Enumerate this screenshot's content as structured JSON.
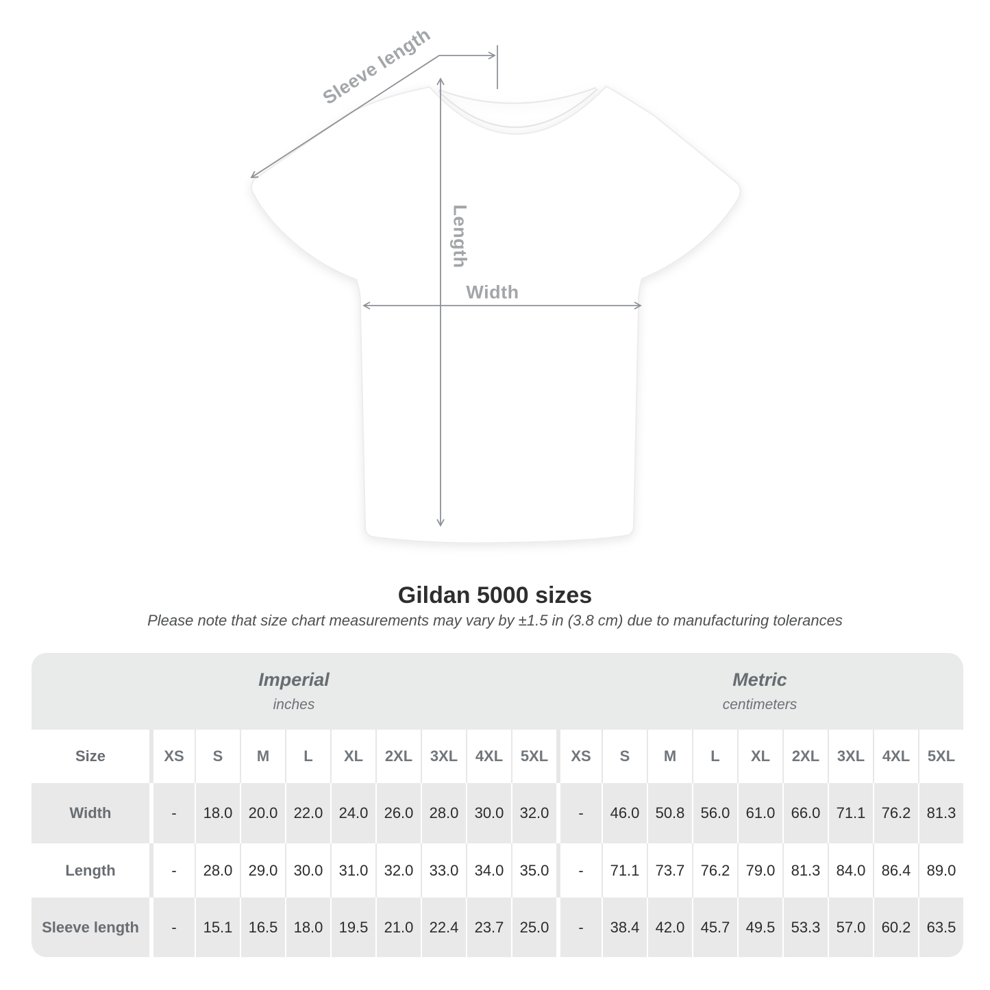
{
  "diagram": {
    "sleeve_label": "Sleeve length",
    "length_label": "Length",
    "width_label": "Width"
  },
  "header": {
    "title": "Gildan 5000 sizes",
    "subtitle": "Please note that size chart measurements may vary by ±1.5 in (3.8 cm) due to manufacturing tolerances"
  },
  "size_table": {
    "corner_header": "Size",
    "groups": [
      {
        "name": "Imperial",
        "unit": "inches"
      },
      {
        "name": "Metric",
        "unit": "centimeters"
      }
    ],
    "sizes": [
      "XS",
      "S",
      "M",
      "L",
      "XL",
      "2XL",
      "3XL",
      "4XL",
      "5XL"
    ],
    "rows": [
      {
        "label": "Width",
        "imperial": [
          "-",
          "18.0",
          "20.0",
          "22.0",
          "24.0",
          "26.0",
          "28.0",
          "30.0",
          "32.0"
        ],
        "metric": [
          "-",
          "46.0",
          "50.8",
          "56.0",
          "61.0",
          "66.0",
          "71.1",
          "76.2",
          "81.3"
        ]
      },
      {
        "label": "Length",
        "imperial": [
          "-",
          "28.0",
          "29.0",
          "30.0",
          "31.0",
          "32.0",
          "33.0",
          "34.0",
          "35.0"
        ],
        "metric": [
          "-",
          "71.1",
          "73.7",
          "76.2",
          "79.0",
          "81.3",
          "84.0",
          "86.4",
          "89.0"
        ]
      },
      {
        "label": "Sleeve length",
        "imperial": [
          "-",
          "15.1",
          "16.5",
          "18.0",
          "19.5",
          "21.0",
          "22.4",
          "23.7",
          "25.0"
        ],
        "metric": [
          "-",
          "38.4",
          "42.0",
          "45.7",
          "49.5",
          "53.3",
          "57.0",
          "60.2",
          "63.5"
        ]
      }
    ]
  },
  "chart_data": {
    "type": "table",
    "title": "Gildan 5000 sizes",
    "note": "Please note that size chart measurements may vary by ±1.5 in (3.8 cm) due to manufacturing tolerances",
    "column_groups": [
      "Imperial (inches)",
      "Metric (centimeters)"
    ],
    "columns": [
      "Size",
      "XS",
      "S",
      "M",
      "L",
      "XL",
      "2XL",
      "3XL",
      "4XL",
      "5XL",
      "XS",
      "S",
      "M",
      "L",
      "XL",
      "2XL",
      "3XL",
      "4XL",
      "5XL"
    ],
    "rows": [
      [
        "Width",
        "-",
        18.0,
        20.0,
        22.0,
        24.0,
        26.0,
        28.0,
        30.0,
        32.0,
        "-",
        46.0,
        50.8,
        56.0,
        61.0,
        66.0,
        71.1,
        76.2,
        81.3
      ],
      [
        "Length",
        "-",
        28.0,
        29.0,
        30.0,
        31.0,
        32.0,
        33.0,
        34.0,
        35.0,
        "-",
        71.1,
        73.7,
        76.2,
        79.0,
        81.3,
        84.0,
        86.4,
        89.0
      ],
      [
        "Sleeve length",
        "-",
        15.1,
        16.5,
        18.0,
        19.5,
        21.0,
        22.4,
        23.7,
        25.0,
        "-",
        38.4,
        42.0,
        45.7,
        49.5,
        53.3,
        57.0,
        60.2,
        63.5
      ]
    ]
  },
  "colors": {
    "band_gray": "#e9eaea",
    "stripe_gray": "#e9e9e9",
    "separator_gray": "#e7e7e7",
    "arrow_gray": "#8d9196",
    "dim_label_gray": "#a2a6a9",
    "header_text": "#70767b",
    "value_text": "#2b2b2b",
    "title_text": "#2e2e2e"
  }
}
